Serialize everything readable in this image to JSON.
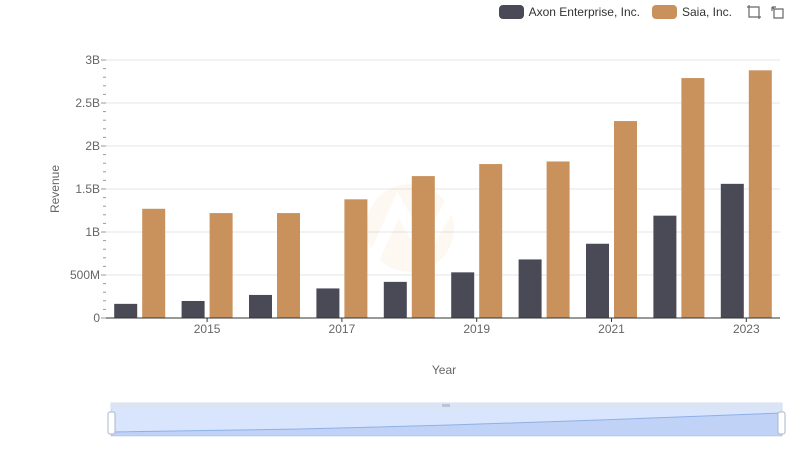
{
  "legend": {
    "items": [
      {
        "label": "Axon Enterprise, Inc.",
        "color": "#4a4a57"
      },
      {
        "label": "Saia, Inc.",
        "color": "#c9915c"
      }
    ]
  },
  "toolbox": {
    "icons": [
      "zoom-icon",
      "restore-icon"
    ]
  },
  "chart_data": {
    "type": "bar",
    "x": [
      2014,
      2015,
      2016,
      2017,
      2018,
      2019,
      2020,
      2021,
      2022,
      2023
    ],
    "xticks": [
      "2015",
      "2017",
      "2019",
      "2021",
      "2023"
    ],
    "xlabel": "Year",
    "ylabel": "Revenue",
    "ylim": [
      0,
      3000000000
    ],
    "yticks": [
      "0",
      "500M",
      "1B",
      "1.5B",
      "2B",
      "2.5B",
      "3B"
    ],
    "grid": true,
    "legend_position": "top-right",
    "series": [
      {
        "name": "Axon Enterprise, Inc.",
        "color": "#4a4a57",
        "values": [
          164500000,
          197900000,
          268200000,
          343800000,
          420100000,
          530900000,
          681000000,
          863400000,
          1190000000,
          1560000000
        ]
      },
      {
        "name": "Saia, Inc.",
        "color": "#c9915c",
        "values": [
          1270000000,
          1220000000,
          1220000000,
          1380000000,
          1650000000,
          1790000000,
          1820000000,
          2290000000,
          2790000000,
          2880000000
        ]
      }
    ]
  }
}
